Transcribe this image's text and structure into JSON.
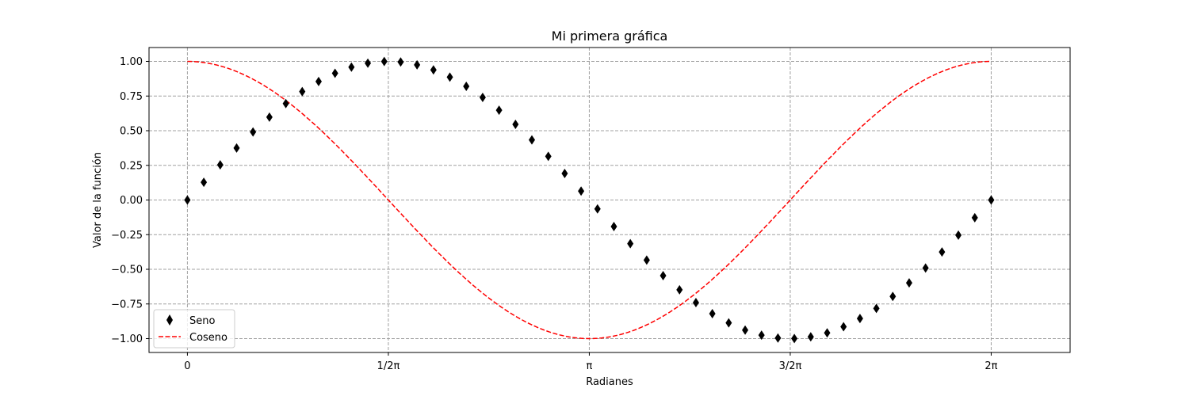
{
  "chart_data": {
    "type": "line",
    "title": "Mi primera gráfica",
    "xlabel": "Radianes",
    "ylabel": "Valor de la función",
    "xlim": [
      -0.3,
      6.9
    ],
    "ylim": [
      -1.1,
      1.1
    ],
    "grid": true,
    "grid_style": "dashed",
    "legend_position": "lower-left",
    "x_ticks": [
      {
        "value": 0,
        "label": "0"
      },
      {
        "value": 1.5708,
        "label": "1/2π"
      },
      {
        "value": 3.1416,
        "label": "π"
      },
      {
        "value": 4.7124,
        "label": "3/2π"
      },
      {
        "value": 6.2832,
        "label": "2π"
      }
    ],
    "y_ticks": [
      {
        "value": 1.0,
        "label": "1.00"
      },
      {
        "value": 0.75,
        "label": "0.75"
      },
      {
        "value": 0.5,
        "label": "0.50"
      },
      {
        "value": 0.25,
        "label": "0.25"
      },
      {
        "value": 0.0,
        "label": "0.00"
      },
      {
        "value": -0.25,
        "label": "−0.25"
      },
      {
        "value": -0.5,
        "label": "−0.50"
      },
      {
        "value": -0.75,
        "label": "−0.75"
      },
      {
        "value": -1.0,
        "label": "−1.00"
      }
    ],
    "series": [
      {
        "name": "Seno",
        "style": "markers",
        "marker": "thin-diamond",
        "color": "#000000",
        "x": [
          0.0,
          0.1282,
          0.2565,
          0.3847,
          0.5129,
          0.6411,
          0.7694,
          0.8976,
          1.0258,
          1.1541,
          1.2823,
          1.4105,
          1.5387,
          1.667,
          1.7952,
          1.9234,
          2.0517,
          2.1799,
          2.3081,
          2.4363,
          2.5646,
          2.6928,
          2.821,
          2.9493,
          3.0775,
          3.2057,
          3.3339,
          3.4622,
          3.5904,
          3.7186,
          3.8468,
          3.9751,
          4.1033,
          4.2315,
          4.3598,
          4.488,
          4.6162,
          4.7444,
          4.8727,
          5.0009,
          5.1291,
          5.2574,
          5.3856,
          5.5138,
          5.642,
          5.7703,
          5.8985,
          6.0267,
          6.155,
          6.2832
        ],
        "y": [
          0.0,
          0.1279,
          0.2537,
          0.3753,
          0.4907,
          0.5981,
          0.6956,
          0.7818,
          0.8551,
          0.9144,
          0.9587,
          0.9872,
          0.9995,
          0.9954,
          0.9749,
          0.9385,
          0.8866,
          0.8202,
          0.7403,
          0.6482,
          0.5455,
          0.4339,
          0.3151,
          0.1912,
          0.0641,
          -0.0641,
          -0.1912,
          -0.3151,
          -0.4339,
          -0.5455,
          -0.6482,
          -0.7403,
          -0.8202,
          -0.8866,
          -0.9385,
          -0.9749,
          -0.9954,
          -0.9995,
          -0.9872,
          -0.9587,
          -0.9144,
          -0.8551,
          -0.7818,
          -0.6956,
          -0.5981,
          -0.4907,
          -0.3753,
          -0.2537,
          -0.1279,
          0.0
        ]
      },
      {
        "name": "Coseno",
        "style": "dashed-line",
        "color": "#ff0000",
        "function": "cos",
        "x_range": [
          0,
          6.2832
        ]
      }
    ]
  }
}
